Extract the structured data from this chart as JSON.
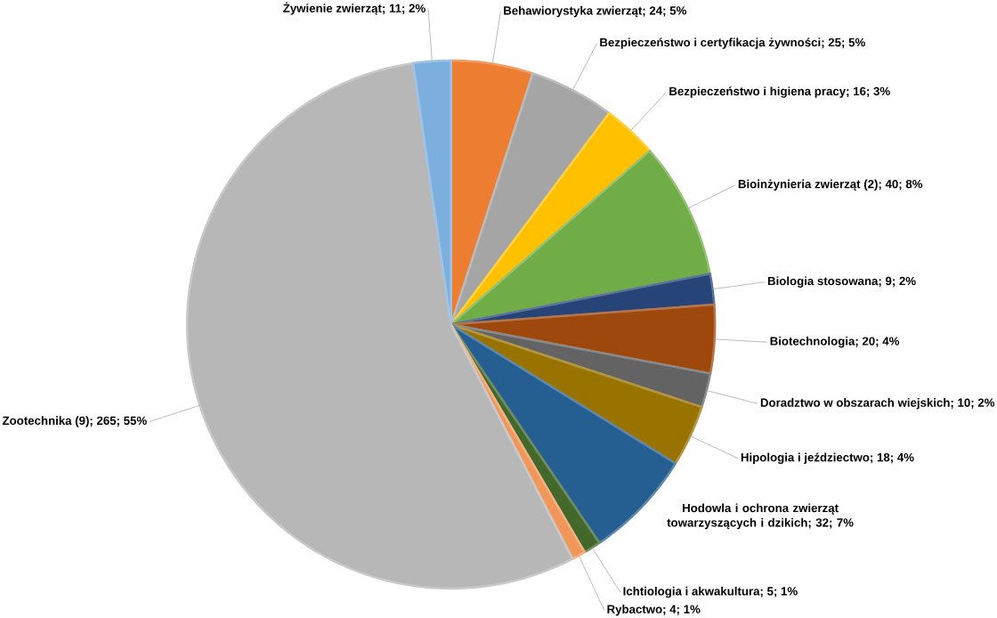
{
  "chart_data": {
    "type": "pie",
    "categories": [
      "Behawiorystyka zwierząt",
      "Bezpieczeństwo i certyfikacja żywności",
      "Bezpieczeństwo i higiena pracy",
      "Bioinżynieria zwierząt (2)",
      "Biologia stosowana",
      "Biotechnologia",
      "Doradztwo w obszarach wiejskich",
      "Hipologia i jeździectwo",
      "Hodowla i ochrona zwierząt towarzyszących i dzikich",
      "Ichtiologia i akwakultura",
      "Rybactwo",
      "Zootechnika (9)",
      "Żywienie zwierząt"
    ],
    "values": [
      24,
      25,
      16,
      40,
      9,
      20,
      10,
      18,
      32,
      5,
      4,
      265,
      11
    ],
    "value_labels": [
      "; 24; 5%",
      "; 25; 5%",
      "; 16; 3%",
      "; 40; 8%",
      "; 9; 2%",
      "; 20; 4%",
      "; 10; 2%",
      "; 18; 4%",
      "; 32; 7%",
      "; 5; 1%",
      "; 4; 1%",
      "; 265; 55%",
      "; 11; 2%"
    ],
    "colors": [
      "#ed7d31",
      "#a5a5a5",
      "#ffc000",
      "#70ad47",
      "#264478",
      "#9e480e",
      "#636363",
      "#997300",
      "#255e91",
      "#43682b",
      "#f1975a",
      "#b7b7b7",
      "#7cafdd"
    ]
  }
}
